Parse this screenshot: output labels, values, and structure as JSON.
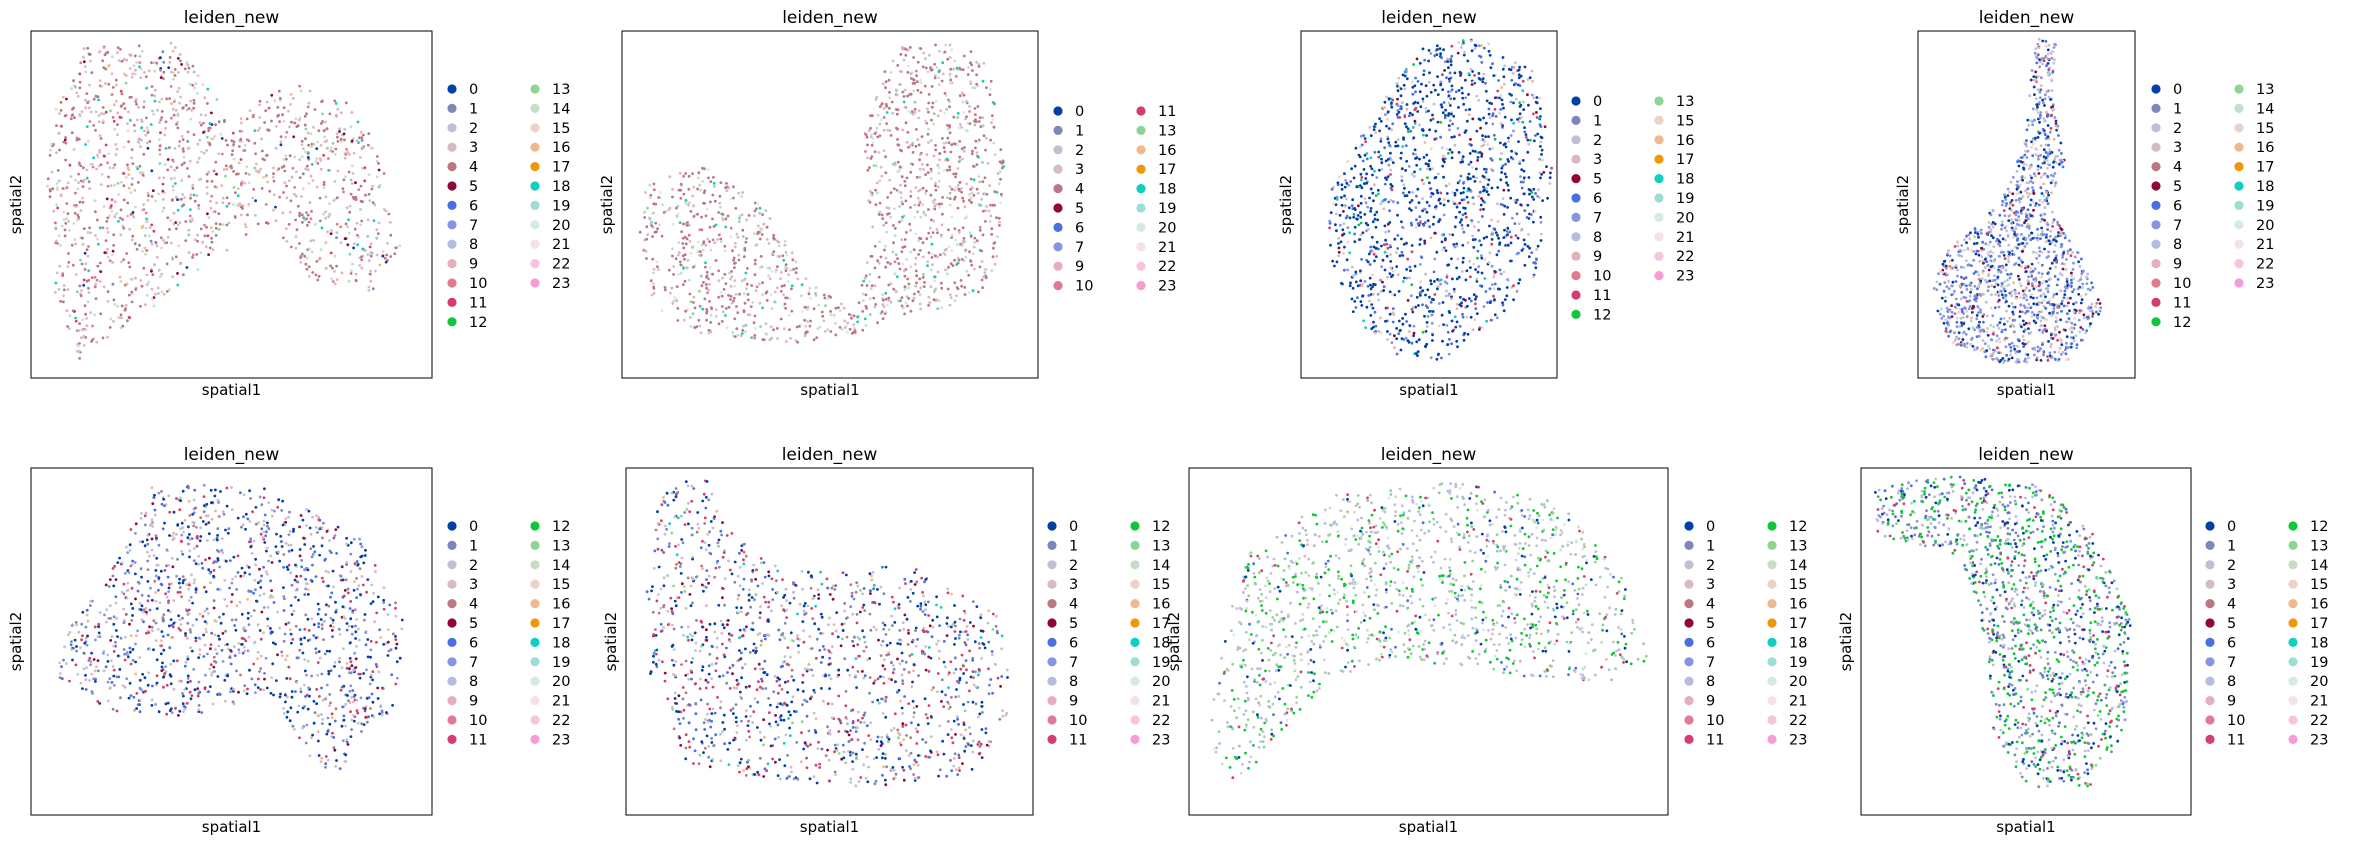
{
  "chart_data": [
    {
      "type": "scatter",
      "title": "leiden_new",
      "xlabel": "spatial1",
      "ylabel": "spatial2",
      "grid": false,
      "legend_placement": "right",
      "legend_entries": [
        "0",
        "1",
        "2",
        "3",
        "4",
        "5",
        "6",
        "7",
        "8",
        "9",
        "10",
        "11",
        "12",
        "13",
        "14",
        "15",
        "16",
        "17",
        "18",
        "19",
        "20",
        "21",
        "22",
        "23"
      ]
    },
    {
      "type": "scatter",
      "title": "leiden_new",
      "xlabel": "spatial1",
      "ylabel": "spatial2",
      "grid": false,
      "legend_placement": "right",
      "legend_entries": [
        "0",
        "1",
        "2",
        "3",
        "4",
        "5",
        "6",
        "7",
        "9",
        "10",
        "11",
        "13",
        "16",
        "17",
        "18",
        "19",
        "20",
        "21",
        "22",
        "23"
      ]
    },
    {
      "type": "scatter",
      "title": "leiden_new",
      "xlabel": "spatial1",
      "ylabel": "spatial2",
      "grid": false,
      "legend_placement": "right",
      "legend_entries": [
        "0",
        "1",
        "2",
        "3",
        "5",
        "6",
        "7",
        "8",
        "9",
        "10",
        "11",
        "12",
        "13",
        "15",
        "16",
        "17",
        "18",
        "19",
        "20",
        "21",
        "22",
        "23"
      ]
    },
    {
      "type": "scatter",
      "title": "leiden_new",
      "xlabel": "spatial1",
      "ylabel": "spatial2",
      "grid": false,
      "legend_placement": "right",
      "legend_entries": [
        "0",
        "1",
        "2",
        "3",
        "4",
        "5",
        "6",
        "7",
        "8",
        "9",
        "10",
        "11",
        "12",
        "13",
        "14",
        "15",
        "16",
        "17",
        "18",
        "19",
        "20",
        "21",
        "22",
        "23"
      ]
    },
    {
      "type": "scatter",
      "title": "leiden_new",
      "xlabel": "spatial1",
      "ylabel": "spatial2",
      "grid": false,
      "legend_placement": "right",
      "legend_entries": [
        "0",
        "1",
        "2",
        "3",
        "4",
        "5",
        "6",
        "7",
        "8",
        "9",
        "10",
        "11",
        "12",
        "13",
        "14",
        "15",
        "16",
        "17",
        "18",
        "19",
        "20",
        "21",
        "22",
        "23"
      ]
    },
    {
      "type": "scatter",
      "title": "leiden_new",
      "xlabel": "spatial1",
      "ylabel": "spatial2",
      "grid": false,
      "legend_placement": "right",
      "legend_entries": [
        "0",
        "1",
        "2",
        "3",
        "4",
        "5",
        "6",
        "7",
        "8",
        "9",
        "10",
        "11",
        "12",
        "13",
        "14",
        "15",
        "16",
        "17",
        "18",
        "19",
        "20",
        "21",
        "22",
        "23"
      ]
    },
    {
      "type": "scatter",
      "title": "leiden_new",
      "xlabel": "spatial1",
      "ylabel": "spatial2",
      "grid": false,
      "legend_placement": "right",
      "legend_entries": [
        "0",
        "1",
        "2",
        "3",
        "4",
        "5",
        "6",
        "7",
        "8",
        "9",
        "10",
        "11",
        "12",
        "13",
        "14",
        "15",
        "16",
        "17",
        "18",
        "19",
        "20",
        "21",
        "22",
        "23"
      ]
    },
    {
      "type": "scatter",
      "title": "leiden_new",
      "xlabel": "spatial1",
      "ylabel": "spatial2",
      "grid": false,
      "legend_placement": "right",
      "legend_entries": [
        "0",
        "1",
        "2",
        "3",
        "4",
        "5",
        "6",
        "7",
        "8",
        "9",
        "10",
        "11",
        "12",
        "13",
        "14",
        "15",
        "16",
        "17",
        "18",
        "19",
        "20",
        "21",
        "22",
        "23"
      ]
    }
  ],
  "palette": {
    "0": "#023fa5",
    "1": "#7d87b9",
    "2": "#bec1d4",
    "3": "#d6bcc0",
    "4": "#bb7784",
    "5": "#8e063b",
    "6": "#4a6fe3",
    "7": "#8595e1",
    "8": "#b5bbe3",
    "9": "#e6afb9",
    "10": "#e07b91",
    "11": "#d33f6a",
    "12": "#11c638",
    "13": "#8dd593",
    "14": "#c6dec7",
    "15": "#ead3c6",
    "16": "#f0b98d",
    "17": "#ef9708",
    "18": "#0fcfc0",
    "19": "#9cded6",
    "20": "#d5eae7",
    "21": "#f3e1eb",
    "22": "#f6c4e1",
    "23": "#f79cd4"
  }
}
